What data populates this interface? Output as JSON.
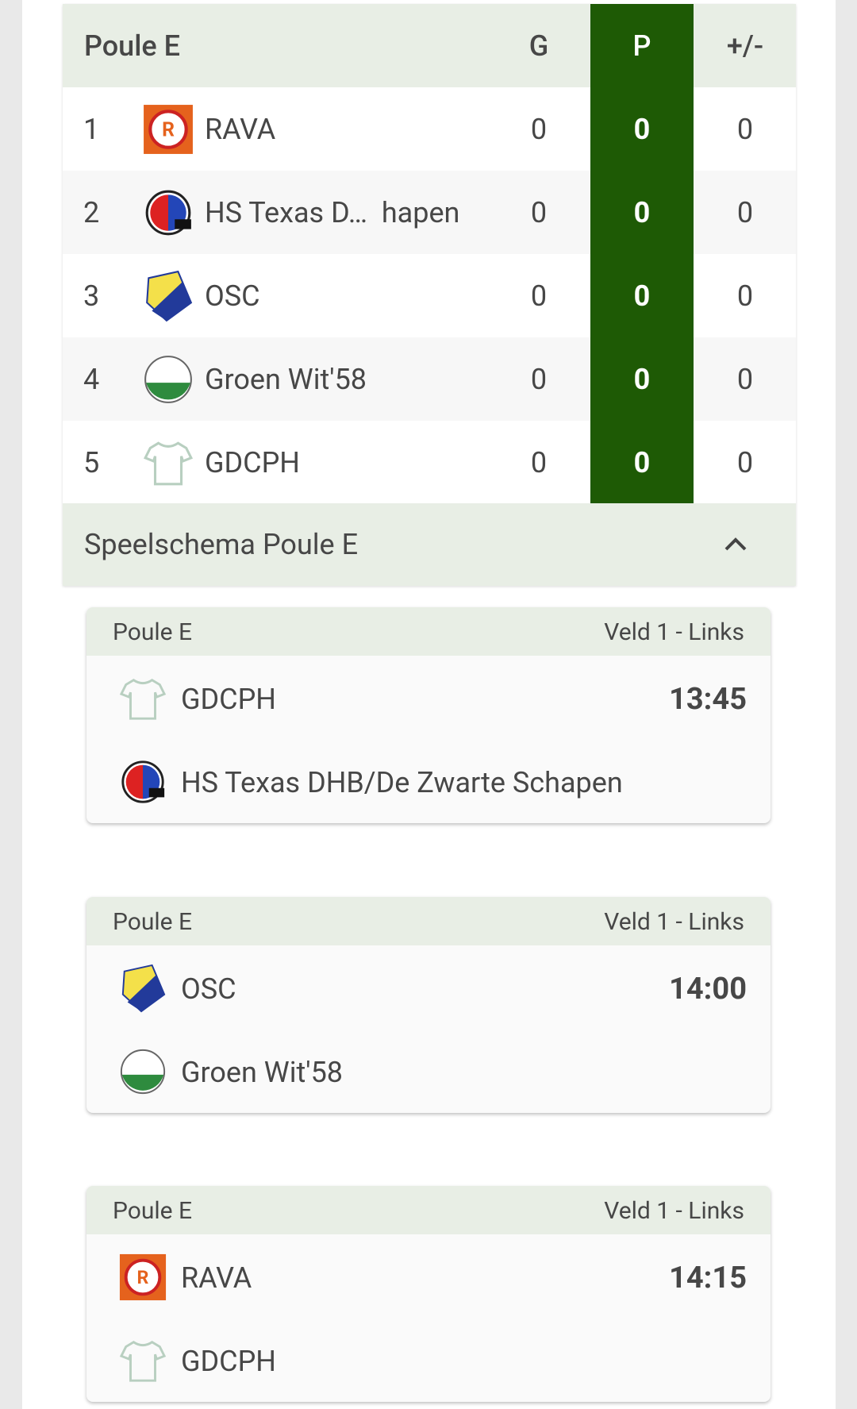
{
  "table": {
    "title": "Poule E",
    "columns": [
      "G",
      "P",
      "+/-"
    ],
    "rows": [
      [
        1,
        "RAVA",
        0,
        0,
        0
      ],
      [
        2,
        "HS Texas D…  hapen",
        0,
        0,
        0
      ],
      [
        3,
        "OSC",
        0,
        0,
        0
      ],
      [
        4,
        "Groen Wit'58",
        0,
        0,
        0
      ],
      [
        5,
        "GDCPH",
        0,
        0,
        0
      ]
    ]
  },
  "schedule": {
    "title": "Speelschema Poule E",
    "matches": [
      {
        "poule": "Poule E",
        "field": "Veld 1 - Links",
        "home": "GDCPH",
        "away": "HS Texas DHB/De Zwarte Schapen",
        "time": "13:45"
      },
      {
        "poule": "Poule E",
        "field": "Veld 1 - Links",
        "home": "OSC",
        "away": "Groen Wit'58",
        "time": "14:00"
      },
      {
        "poule": "Poule E",
        "field": "Veld 1 - Links",
        "home": "RAVA",
        "away": "GDCPH",
        "time": "14:15"
      }
    ]
  }
}
